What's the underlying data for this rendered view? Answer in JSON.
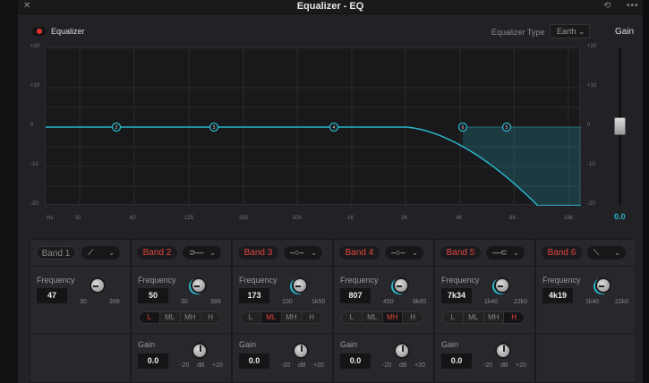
{
  "window": {
    "title": "Equalizer - EQ",
    "close_icon": "close-icon",
    "reset_icon": "reset-icon",
    "more_icon": "more-icon"
  },
  "header": {
    "toggle_label": "Equalizer",
    "toggle_on": true,
    "type_label": "Equalizer Type",
    "type_value": "Earth",
    "gain_label": "Gain"
  },
  "graph": {
    "y_ticks": [
      "+20",
      "+10",
      "0",
      "-10",
      "-20"
    ],
    "x_ticks": [
      "Hz",
      "31",
      "62",
      "125",
      "250",
      "500",
      "1K",
      "2K",
      "4K",
      "8K",
      "16K"
    ],
    "nodes": [
      "2",
      "3",
      "4",
      "6",
      "5"
    ],
    "curve_color": "#2bb5c9"
  },
  "gain_slider": {
    "scale": [
      "+20",
      "+10",
      "0",
      "-10",
      "-20"
    ],
    "value": "0.0",
    "level_db": 0
  },
  "bands": [
    {
      "label": "Band 1",
      "active": false,
      "shape": "low-cut-icon",
      "freq_label": "Frequency",
      "freq": "47",
      "min": "30",
      "max": "399"
    },
    {
      "label": "Band 2",
      "active": true,
      "shape": "low-shelf-icon",
      "freq_label": "Frequency",
      "freq": "50",
      "min": "30",
      "max": "399",
      "ranges": [
        "L",
        "ML",
        "MH",
        "H"
      ],
      "range_sel": 0,
      "gain_label": "Gain",
      "gain": "0.0",
      "gmin": "-20",
      "gunit": "dB",
      "gmax": "+20"
    },
    {
      "label": "Band 3",
      "active": true,
      "shape": "bell-icon",
      "freq_label": "Frequency",
      "freq": "173",
      "min": "100",
      "max": "1k50",
      "ranges": [
        "L",
        "ML",
        "MH",
        "H"
      ],
      "range_sel": 1,
      "gain_label": "Gain",
      "gain": "0.0",
      "gmin": "-20",
      "gunit": "dB",
      "gmax": "+20"
    },
    {
      "label": "Band 4",
      "active": true,
      "shape": "bell-icon",
      "freq_label": "Frequency",
      "freq": "807",
      "min": "450",
      "max": "8k00",
      "ranges": [
        "L",
        "ML",
        "MH",
        "H"
      ],
      "range_sel": 2,
      "gain_label": "Gain",
      "gain": "0.0",
      "gmin": "-20",
      "gunit": "dB",
      "gmax": "+20"
    },
    {
      "label": "Band 5",
      "active": true,
      "shape": "high-shelf-icon",
      "freq_label": "Frequency",
      "freq": "7k34",
      "min": "1k40",
      "max": "22k0",
      "ranges": [
        "L",
        "ML",
        "MH",
        "H"
      ],
      "range_sel": 3,
      "gain_label": "Gain",
      "gain": "0.0",
      "gmin": "-20",
      "gunit": "dB",
      "gmax": "+20"
    },
    {
      "label": "Band 6",
      "active": true,
      "shape": "high-cut-icon",
      "freq_label": "Frequency",
      "freq": "4k19",
      "min": "1k40",
      "max": "22k0"
    }
  ]
}
